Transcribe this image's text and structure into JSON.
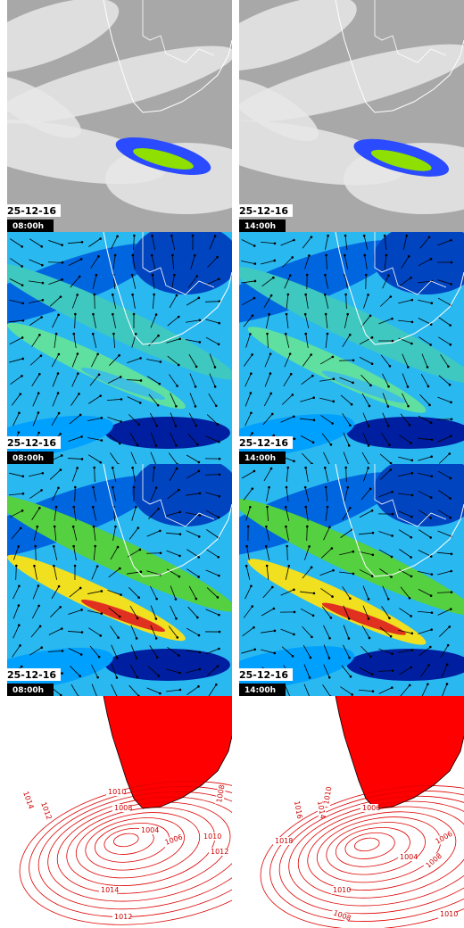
{
  "rows": [
    {
      "cells": [
        {
          "date": "25-12-16",
          "time": "08:00h"
        },
        {
          "date": "25-12-16",
          "time": "14:00h"
        }
      ]
    },
    {
      "cells": [
        {
          "date": "25-12-16",
          "time": "08:00h"
        },
        {
          "date": "25-12-16",
          "time": "14:00h"
        }
      ]
    },
    {
      "cells": [
        {
          "date": "25-12-16",
          "time": "08:00h"
        },
        {
          "date": "25-12-16",
          "time": "14:00h"
        }
      ]
    }
  ],
  "pressure_maps": [
    {
      "labels": [
        "1014",
        "1012",
        "1010",
        "1008",
        "1004",
        "1006",
        "1010",
        "1012",
        "1014",
        "1012",
        "1008"
      ]
    },
    {
      "labels": [
        "1016",
        "1014",
        "1010",
        "1006",
        "1018",
        "1004",
        "1006",
        "1008",
        "1010",
        "1008",
        "1010"
      ]
    }
  ]
}
